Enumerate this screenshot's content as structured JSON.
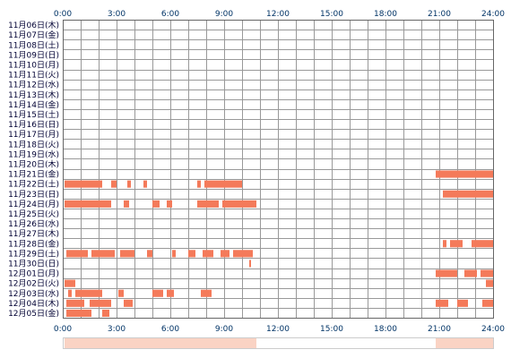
{
  "chart_data": {
    "type": "heatmap",
    "title": "",
    "xlabel": "",
    "ylabel": "",
    "x_ticks": [
      "0:00",
      "3:00",
      "6:00",
      "9:00",
      "12:00",
      "15:00",
      "18:00",
      "21:00",
      "24:00"
    ],
    "xlim": [
      0,
      24
    ],
    "grid": true,
    "colors": {
      "activity": "#f47a5a",
      "grid": "#999999",
      "border": "#666666",
      "tick_text": "#003366",
      "label_text": "#000033",
      "summary_bar": "#fad3c4",
      "summary_border": "#cccccc"
    },
    "rows": [
      {
        "label": "11月06日(木)",
        "segments": []
      },
      {
        "label": "11月07日(金)",
        "segments": []
      },
      {
        "label": "11月08日(土)",
        "segments": []
      },
      {
        "label": "11月09日(日)",
        "segments": []
      },
      {
        "label": "11月10日(月)",
        "segments": []
      },
      {
        "label": "11月11日(火)",
        "segments": []
      },
      {
        "label": "11月12日(水)",
        "segments": []
      },
      {
        "label": "11月13日(木)",
        "segments": []
      },
      {
        "label": "11月14日(金)",
        "segments": []
      },
      {
        "label": "11月15日(土)",
        "segments": []
      },
      {
        "label": "11月16日(日)",
        "segments": []
      },
      {
        "label": "11月17日(月)",
        "segments": []
      },
      {
        "label": "11月18日(火)",
        "segments": []
      },
      {
        "label": "11月19日(水)",
        "segments": []
      },
      {
        "label": "11月20日(木)",
        "segments": []
      },
      {
        "label": "11月21日(金)",
        "segments": [
          [
            20.8,
            24.0
          ]
        ]
      },
      {
        "label": "11月22日(土)",
        "segments": [
          [
            0.1,
            2.2
          ],
          [
            2.7,
            3.0
          ],
          [
            3.6,
            3.8
          ],
          [
            4.5,
            4.7
          ],
          [
            7.5,
            7.7
          ],
          [
            7.9,
            10.0
          ]
        ]
      },
      {
        "label": "11月23日(日)",
        "segments": [
          [
            21.2,
            24.0
          ]
        ]
      },
      {
        "label": "11月24日(月)",
        "segments": [
          [
            0.1,
            2.7
          ],
          [
            3.4,
            3.7
          ],
          [
            5.0,
            5.4
          ],
          [
            5.8,
            6.1
          ],
          [
            7.5,
            8.7
          ],
          [
            8.9,
            10.8
          ]
        ]
      },
      {
        "label": "11月25日(火)",
        "segments": []
      },
      {
        "label": "11月26日(水)",
        "segments": []
      },
      {
        "label": "11月27日(木)",
        "segments": []
      },
      {
        "label": "11月28日(金)",
        "segments": [
          [
            21.2,
            21.4
          ],
          [
            21.6,
            22.3
          ],
          [
            22.8,
            24.0
          ]
        ]
      },
      {
        "label": "11月29日(土)",
        "segments": [
          [
            0.2,
            1.4
          ],
          [
            1.6,
            2.9
          ],
          [
            3.2,
            4.0
          ],
          [
            4.7,
            5.0
          ],
          [
            6.1,
            6.3
          ],
          [
            7.0,
            7.4
          ],
          [
            7.8,
            8.4
          ],
          [
            8.8,
            9.3
          ],
          [
            9.5,
            10.6
          ]
        ]
      },
      {
        "label": "11月30日(日)",
        "segments": [
          [
            10.4,
            10.5
          ]
        ]
      },
      {
        "label": "12月01日(月)",
        "segments": [
          [
            20.8,
            22.0
          ],
          [
            22.4,
            23.1
          ],
          [
            23.3,
            24.0
          ]
        ]
      },
      {
        "label": "12月02日(火)",
        "segments": [
          [
            0.1,
            0.7
          ],
          [
            23.6,
            24.0
          ]
        ]
      },
      {
        "label": "12月03日(水)",
        "segments": [
          [
            0.3,
            0.5
          ],
          [
            0.7,
            2.2
          ],
          [
            3.1,
            3.4
          ],
          [
            5.0,
            5.6
          ],
          [
            5.8,
            6.2
          ],
          [
            7.7,
            8.3
          ]
        ]
      },
      {
        "label": "12月04日(木)",
        "segments": [
          [
            0.2,
            1.2
          ],
          [
            1.5,
            2.7
          ],
          [
            3.4,
            3.9
          ],
          [
            20.8,
            21.5
          ],
          [
            22.0,
            22.6
          ],
          [
            23.4,
            24.0
          ]
        ]
      },
      {
        "label": "12月05日(金)",
        "segments": [
          [
            0.2,
            1.6
          ],
          [
            2.2,
            2.6
          ]
        ]
      }
    ],
    "summary": {
      "segments": [
        [
          0.1,
          10.8
        ],
        [
          20.8,
          24.0
        ]
      ]
    }
  }
}
